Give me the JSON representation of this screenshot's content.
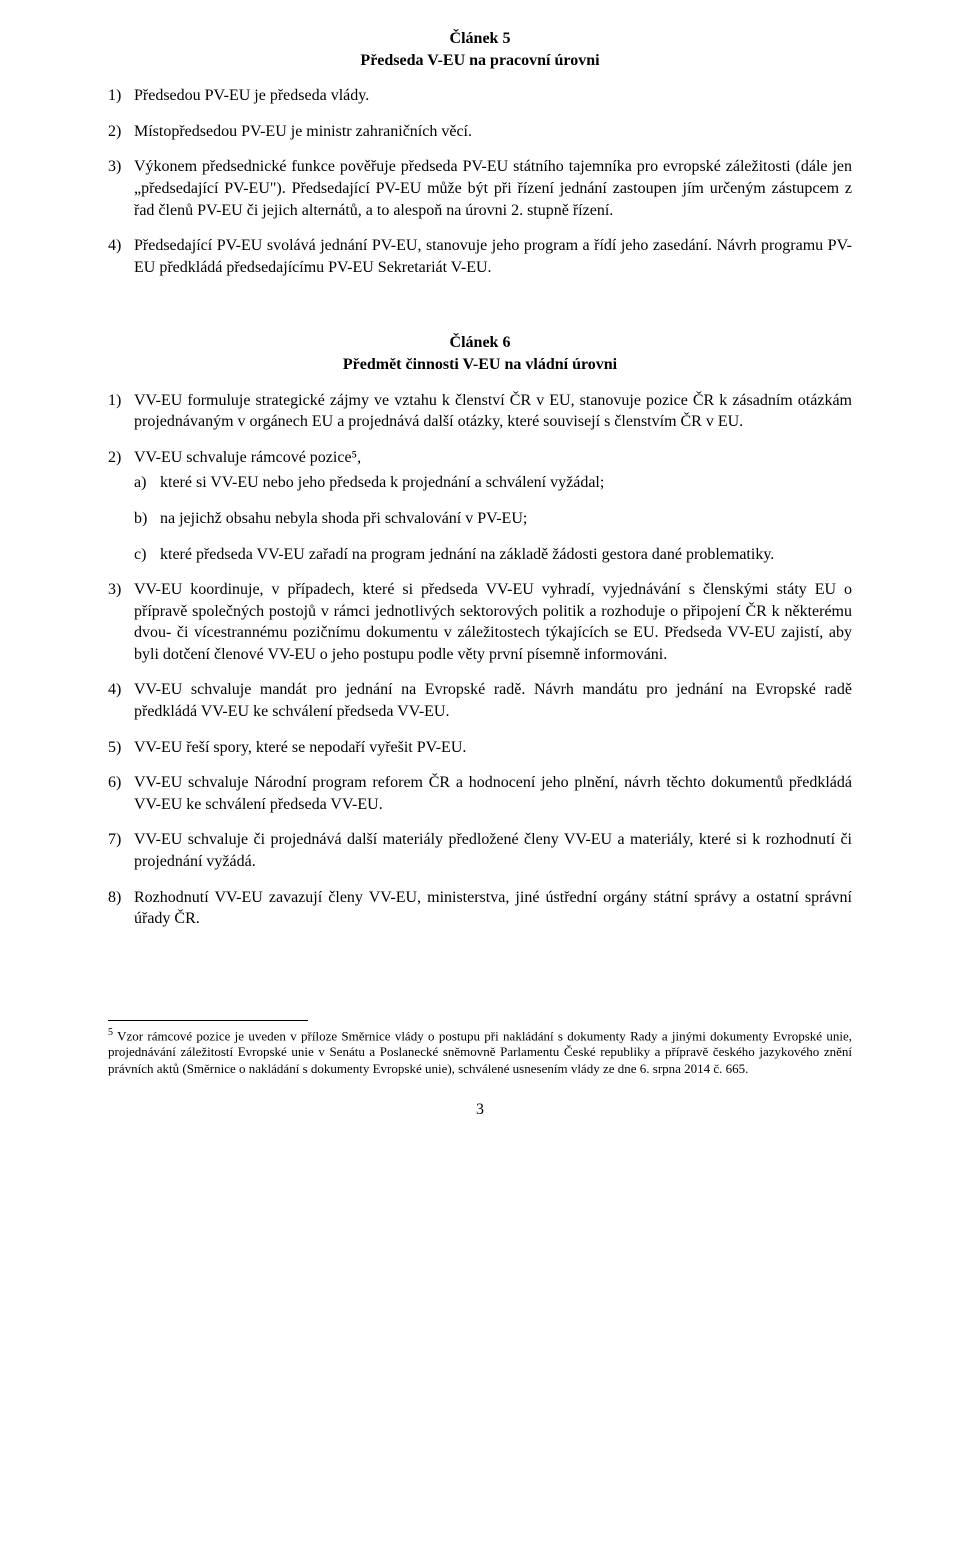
{
  "article5": {
    "title": "Článek 5",
    "subtitle": "Předseda V-EU na pracovní úrovni",
    "items": [
      {
        "num": "1)",
        "text": "Předsedou PV-EU je předseda vlády."
      },
      {
        "num": "2)",
        "text": "Místopředsedou PV-EU je ministr zahraničních věcí."
      },
      {
        "num": "3)",
        "text": "Výkonem předsednické funkce pověřuje předseda PV-EU státního tajemníka pro evropské záležitosti (dále jen „předsedající PV-EU\"). Předsedající PV-EU může být při řízení jednání zastoupen jím určeným zástupcem z řad členů PV-EU či jejich alternátů, a to alespoň na úrovni 2. stupně řízení."
      },
      {
        "num": "4)",
        "text": "Předsedající PV-EU svolává jednání PV-EU, stanovuje jeho program a řídí jeho zasedání. Návrh programu PV-EU předkládá předsedajícímu PV-EU Sekretariát V-EU."
      }
    ]
  },
  "article6": {
    "title": "Článek 6",
    "subtitle": "Předmět činnosti V-EU na vládní úrovni",
    "items": [
      {
        "num": "1)",
        "text": "VV-EU formuluje strategické zájmy ve vztahu k členství ČR v EU, stanovuje pozice ČR k zásadním otázkám projednávaným v orgánech EU a projednává další otázky, které souvisejí s členstvím ČR v EU."
      },
      {
        "num": "2)",
        "text": "VV-EU schvaluje rámcové pozice⁵,",
        "subitems": [
          {
            "num": "a)",
            "text": "které si VV-EU nebo jeho předseda k projednání a schválení vyžádal;"
          },
          {
            "num": "b)",
            "text": "na jejichž obsahu nebyla shoda při schvalování v PV-EU;"
          },
          {
            "num": "c)",
            "text": "které předseda VV-EU zařadí na program jednání na základě žádosti gestora dané problematiky."
          }
        ]
      },
      {
        "num": "3)",
        "text": "VV-EU koordinuje, v případech, které si předseda VV-EU vyhradí, vyjednávání s členskými státy EU o přípravě společných postojů v rámci jednotlivých sektorových politik a rozhoduje o připojení ČR k některému dvou- či vícestrannému pozičnímu dokumentu v záležitostech týkajících se EU. Předseda VV-EU zajistí, aby byli dotčení členové VV-EU o jeho postupu podle věty první písemně informováni."
      },
      {
        "num": "4)",
        "text": "VV-EU schvaluje mandát pro jednání na Evropské radě. Návrh mandátu pro jednání na Evropské radě předkládá VV-EU ke schválení předseda VV-EU."
      },
      {
        "num": "5)",
        "text": "VV-EU řeší spory, které se nepodaří vyřešit PV-EU."
      },
      {
        "num": "6)",
        "text": "VV-EU schvaluje Národní program reforem ČR a hodnocení jeho plnění, návrh těchto dokumentů předkládá VV-EU ke schválení předseda VV-EU."
      },
      {
        "num": "7)",
        "text": "VV-EU schvaluje či projednává další materiály předložené členy VV-EU a materiály, které si k rozhodnutí či projednání vyžádá."
      },
      {
        "num": "8)",
        "text": "Rozhodnutí VV-EU zavazují členy VV-EU, ministerstva, jiné ústřední orgány státní správy a ostatní správní úřady ČR."
      }
    ]
  },
  "footnote": {
    "marker": "5",
    "text": "Vzor rámcové pozice je uveden v příloze Směrnice vlády o postupu při nakládání s dokumenty Rady a jinými dokumenty Evropské unie, projednávání záležitostí Evropské unie v Senátu a Poslanecké sněmovně Parlamentu České republiky a přípravě českého jazykového znění právních aktů (Směrnice o nakládání s dokumenty Evropské unie), schválené usnesením vlády ze dne 6. srpna 2014 č. 665."
  },
  "pageNumber": "3"
}
